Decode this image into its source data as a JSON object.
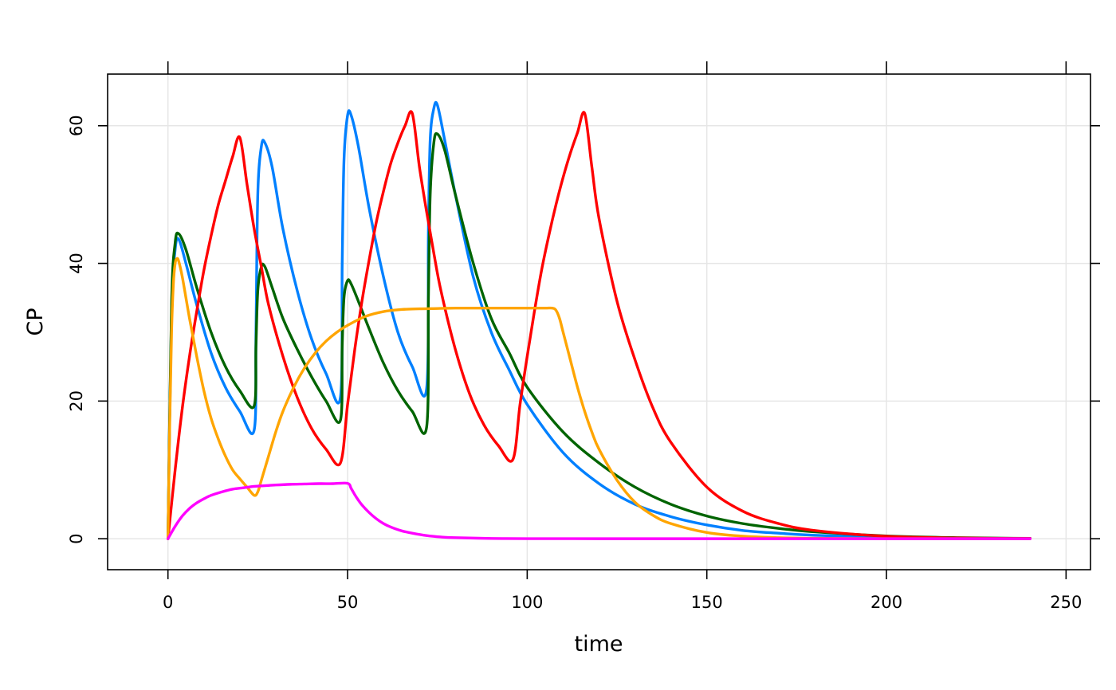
{
  "chart_data": {
    "type": "line",
    "title": "",
    "xlabel": "time",
    "ylabel": "CP",
    "xlim": [
      -16.8,
      256.8
    ],
    "ylim": [
      -4.5,
      67.5
    ],
    "xticks": [
      0,
      50,
      100,
      150,
      200,
      250
    ],
    "yticks": [
      0,
      20,
      40,
      60
    ],
    "grid": true,
    "legend": "none",
    "series": [
      {
        "name": "blue",
        "color": "#0080ff",
        "x": [
          0,
          1,
          2,
          3,
          5,
          8,
          12,
          16,
          20,
          24,
          24.5,
          25,
          26,
          27,
          29,
          32,
          36,
          40,
          44,
          48,
          48.5,
          49,
          50,
          51,
          53,
          56,
          60,
          64,
          68,
          72,
          72.5,
          73,
          74,
          75,
          77,
          80,
          85,
          90,
          95,
          100,
          110,
          120,
          130,
          140,
          150,
          160,
          170,
          180,
          200,
          220,
          240
        ],
        "y": [
          0,
          33,
          42,
          43.5,
          40,
          34,
          27,
          22,
          18.5,
          15.8,
          30,
          50,
          57,
          57.5,
          54,
          45,
          36,
          29,
          24,
          20.5,
          40,
          55,
          61.5,
          61.5,
          57,
          48,
          38,
          30,
          25,
          21.8,
          45,
          58,
          62.5,
          63,
          58,
          50,
          38,
          30,
          24.5,
          19.5,
          12.5,
          8,
          5,
          3.2,
          2,
          1.2,
          0.8,
          0.5,
          0.2,
          0.07,
          0.02
        ]
      },
      {
        "name": "green",
        "color": "#006400",
        "x": [
          0,
          1,
          2,
          3,
          5,
          8,
          12,
          16,
          20,
          24,
          24.5,
          25,
          26,
          27,
          29,
          32,
          36,
          40,
          44,
          48,
          48.5,
          49,
          50,
          51,
          53,
          56,
          60,
          64,
          68,
          72,
          72.5,
          73,
          74,
          75,
          77,
          80,
          85,
          90,
          95,
          100,
          110,
          120,
          130,
          140,
          150,
          160,
          170,
          180,
          200,
          220,
          240
        ],
        "y": [
          0,
          34,
          43,
          44.3,
          42,
          36.5,
          30,
          25,
          21.5,
          19.3,
          28,
          36,
          39.5,
          39.5,
          36.5,
          32,
          27.5,
          23.5,
          20,
          17.2,
          28,
          35,
          37.5,
          37,
          34.5,
          30.5,
          25.5,
          21.5,
          18.5,
          16.2,
          35,
          50,
          57.5,
          58.8,
          56.5,
          50,
          40,
          32,
          27,
          22,
          15.5,
          11,
          7.5,
          5,
          3.3,
          2.2,
          1.5,
          1,
          0.4,
          0.15,
          0.05
        ]
      },
      {
        "name": "red",
        "color": "#ff0000",
        "x": [
          0,
          2,
          4,
          6,
          8,
          10,
          12,
          14,
          16,
          18,
          20,
          22,
          24,
          26,
          28,
          32,
          36,
          40,
          44,
          48,
          50,
          52,
          54,
          56,
          58,
          60,
          62,
          64,
          66,
          68,
          70,
          72,
          74,
          76,
          80,
          84,
          88,
          92,
          96,
          98,
          100,
          102,
          104,
          106,
          108,
          110,
          112,
          114,
          116,
          118,
          120,
          125,
          130,
          135,
          140,
          150,
          160,
          170,
          180,
          200,
          220,
          240
        ],
        "y": [
          0,
          10,
          19,
          26.5,
          33,
          39,
          44,
          48.5,
          52,
          55.5,
          58.3,
          51.5,
          45,
          39.5,
          34,
          26.5,
          20.5,
          16,
          13,
          11,
          19.5,
          27.5,
          34.5,
          40.5,
          46,
          50.5,
          54.5,
          57.5,
          60,
          61.8,
          54,
          47.5,
          41.5,
          36,
          27.5,
          21,
          16.5,
          13.5,
          11.5,
          19.5,
          26.5,
          33,
          39,
          44,
          48.5,
          52.5,
          56,
          59,
          61.8,
          54,
          46.5,
          34.5,
          26,
          19,
          14,
          7.5,
          4,
          2.2,
          1.2,
          0.35,
          0.1,
          0.03
        ]
      },
      {
        "name": "orange",
        "color": "#ffa500",
        "x": [
          0,
          0.5,
          1,
          1.5,
          2,
          2.5,
          3,
          4,
          6,
          8,
          10,
          12,
          14,
          16,
          18,
          20,
          22,
          24,
          25,
          26,
          28,
          30,
          32,
          35,
          38,
          41,
          44,
          47,
          50,
          55,
          60,
          65,
          70,
          75,
          80,
          85,
          90,
          95,
          100,
          105,
          107,
          108,
          109,
          110,
          112,
          114,
          116,
          118,
          120,
          125,
          130,
          135,
          140,
          150,
          160,
          170,
          180,
          200,
          220,
          240
        ],
        "y": [
          0,
          17,
          30,
          37,
          40,
          40.7,
          40.3,
          38,
          32,
          26.5,
          21.5,
          17.5,
          14.5,
          12,
          10,
          8.7,
          7.5,
          6.3,
          6.8,
          8.5,
          12,
          15.5,
          18.5,
          22,
          24.8,
          27,
          28.7,
          30,
          31,
          32.3,
          33,
          33.3,
          33.4,
          33.45,
          33.5,
          33.5,
          33.5,
          33.5,
          33.5,
          33.5,
          33.5,
          33.2,
          32,
          30,
          26,
          22,
          18.5,
          15.5,
          13,
          8.5,
          5.3,
          3.4,
          2.2,
          0.9,
          0.37,
          0.15,
          0.06,
          0.01,
          0,
          0
        ]
      },
      {
        "name": "magenta",
        "color": "#ff00ff",
        "x": [
          0,
          2,
          4,
          6,
          8,
          10,
          12,
          15,
          18,
          21,
          24,
          27,
          30,
          34,
          38,
          42,
          46,
          50,
          51,
          52,
          53,
          54,
          56,
          58,
          60,
          62,
          65,
          68,
          72,
          76,
          80,
          90,
          100,
          120,
          140,
          160,
          180,
          200,
          220,
          240
        ],
        "y": [
          0,
          1.8,
          3.3,
          4.4,
          5.2,
          5.8,
          6.3,
          6.8,
          7.2,
          7.4,
          7.6,
          7.7,
          7.8,
          7.9,
          7.95,
          8,
          8,
          8.05,
          7.3,
          6.4,
          5.6,
          4.9,
          3.8,
          2.9,
          2.2,
          1.7,
          1.15,
          0.8,
          0.45,
          0.25,
          0.15,
          0.04,
          0.01,
          0,
          0,
          0,
          0,
          0,
          0,
          0
        ]
      }
    ]
  }
}
